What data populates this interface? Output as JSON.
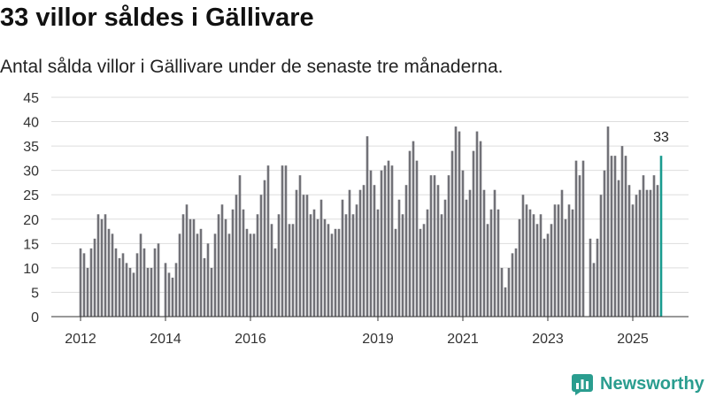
{
  "title": "33 villor såldes i Gällivare",
  "subtitle": "Antal sålda villor i Gällivare under de senaste tre månaderna.",
  "brand": {
    "name": "Newsworthy",
    "icon": "newsworthy-logo-icon",
    "color": "#2a9d8f"
  },
  "chart_data": {
    "type": "bar",
    "title": "33 villor såldes i Gällivare",
    "xlabel": "",
    "ylabel": "",
    "ylim": [
      0,
      45
    ],
    "yticks": [
      0,
      5,
      10,
      15,
      20,
      25,
      30,
      35,
      40,
      45
    ],
    "x_start": "2012-01",
    "xticks": [
      {
        "label": "2012",
        "index": 0
      },
      {
        "label": "2014",
        "index": 24
      },
      {
        "label": "2016",
        "index": 48
      },
      {
        "label": "2019",
        "index": 84
      },
      {
        "label": "2021",
        "index": 108
      },
      {
        "label": "2023",
        "index": 132
      },
      {
        "label": "2025",
        "index": 156
      }
    ],
    "values": [
      14,
      13,
      10,
      14,
      16,
      21,
      20,
      21,
      18,
      17,
      14,
      12,
      13,
      11,
      10,
      9,
      13,
      17,
      14,
      10,
      10,
      14,
      15,
      null,
      11,
      9,
      8,
      11,
      17,
      21,
      23,
      20,
      20,
      17,
      18,
      12,
      15,
      10,
      17,
      21,
      23,
      20,
      17,
      22,
      25,
      29,
      22,
      18,
      17,
      17,
      21,
      25,
      28,
      31,
      19,
      14,
      21,
      31,
      31,
      19,
      19,
      26,
      29,
      25,
      25,
      21,
      22,
      20,
      24,
      20,
      19,
      17,
      18,
      18,
      24,
      21,
      26,
      21,
      23,
      26,
      27,
      37,
      30,
      27,
      22,
      30,
      31,
      32,
      31,
      18,
      24,
      21,
      27,
      34,
      36,
      32,
      18,
      19,
      22,
      29,
      29,
      27,
      21,
      24,
      29,
      34,
      39,
      38,
      30,
      24,
      26,
      34,
      38,
      36,
      26,
      19,
      22,
      26,
      22,
      10,
      6,
      10,
      13,
      14,
      20,
      25,
      23,
      22,
      21,
      19,
      21,
      16,
      17,
      19,
      23,
      23,
      26,
      20,
      23,
      22,
      32,
      29,
      32,
      null,
      16,
      11,
      16,
      25,
      30,
      39,
      33,
      33,
      28,
      35,
      33,
      27,
      23,
      25,
      26,
      29,
      26,
      26,
      29,
      27,
      33
    ],
    "highlight_index": 164,
    "highlight_label": "33",
    "bar_color": "#717177",
    "highlight_color": "#1a9b8f",
    "grid": true
  }
}
